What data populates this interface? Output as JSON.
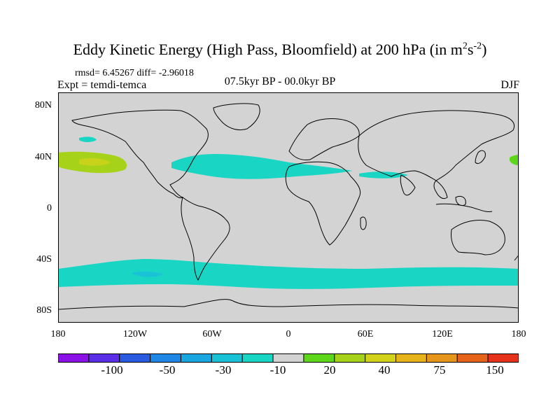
{
  "title": {
    "main": "Eddy Kinetic Energy (High Pass, Bloomfield) at 200 hPa (in m",
    "unit_m_exp": "2",
    "unit_s": "s",
    "unit_s_exp": "-2",
    "close": ")"
  },
  "stats": "rmsd= 6.45267 diff= -2.96018",
  "expt": "Expt = temdi-temca",
  "period": "07.5kyr BP - 00.0kyr BP",
  "season": "DJF",
  "lat_labels": [
    "80N",
    "40N",
    "0",
    "40S",
    "80S"
  ],
  "lon_labels": [
    "180",
    "120W",
    "60W",
    "0",
    "60E",
    "120E",
    "180"
  ],
  "colorbar": {
    "labels": [
      "-100",
      "-50",
      "-30",
      "-10",
      "20",
      "40",
      "75",
      "150"
    ],
    "colors": [
      "#8a12e6",
      "#5a2ee6",
      "#2a5ae0",
      "#1f86e6",
      "#1aa6e0",
      "#19c2d6",
      "#19d6c4",
      "#d3d3d3",
      "#5ed61a",
      "#a6d31a",
      "#d3d21a",
      "#e6b41a",
      "#e6961a",
      "#e6641a",
      "#e6321a"
    ]
  },
  "map_colors": {
    "ocean_land": "#d3d3d3",
    "teal": "#19d6c4",
    "cyan": "#19c2d6",
    "green": "#a6d31a",
    "bright_green": "#5ed61a",
    "coast": "#000000"
  }
}
